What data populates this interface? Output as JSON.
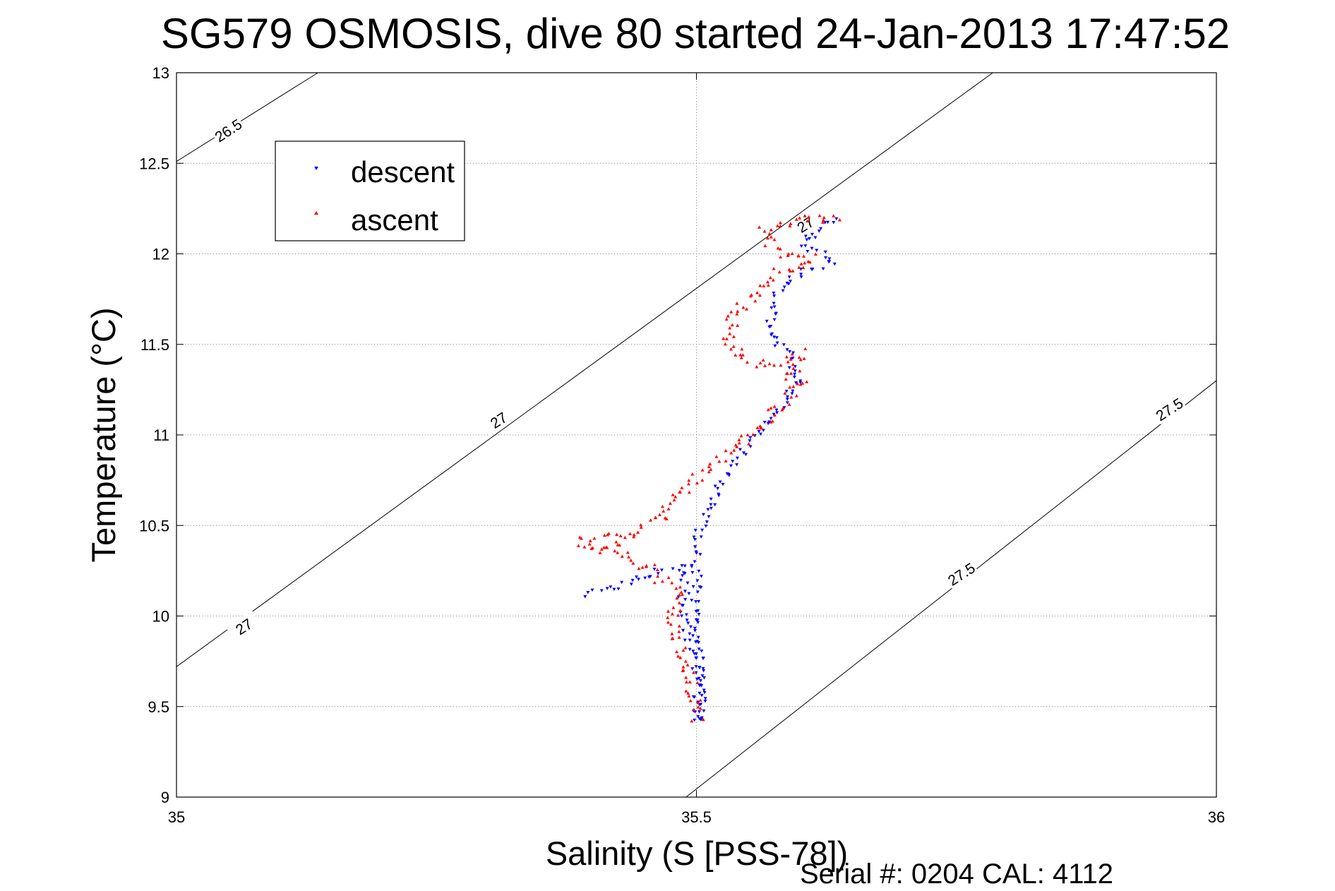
{
  "chart_data": {
    "type": "scatter",
    "title": "SG579 OSMOSIS, dive 80 started 24-Jan-2013 17:47:52",
    "xlabel": "Salinity (S [PSS-78])",
    "ylabel": "Temperature (°C)",
    "xlim": [
      35,
      36
    ],
    "ylim": [
      9,
      13
    ],
    "xticks": [
      35,
      35.5,
      36
    ],
    "xtick_labels": [
      "35",
      "35.5",
      "36"
    ],
    "yticks": [
      9,
      9.5,
      10,
      10.5,
      11,
      11.5,
      12,
      12.5,
      13
    ],
    "ytick_labels": [
      "9",
      "9.5",
      "10",
      "10.5",
      "11",
      "11.5",
      "12",
      "12.5",
      "13"
    ],
    "grid": true,
    "legend_position": "top-left",
    "footer": "Serial #: 0204  CAL: 4112",
    "colors": {
      "descent": "#0000ff",
      "ascent": "#ff0000",
      "contour": "#000000",
      "grid": "#808080"
    },
    "density_contours": [
      {
        "level": "26.5",
        "points": [
          [
            35,
            12.51
          ],
          [
            35.136,
            13
          ]
        ]
      },
      {
        "level": "27",
        "points": [
          [
            35,
            9.72
          ],
          [
            35.785,
            13
          ]
        ]
      },
      {
        "level": "27.5",
        "points": [
          [
            35.49,
            9
          ],
          [
            36,
            11.3
          ]
        ]
      }
    ],
    "contour_labels": [
      {
        "text": "26.5",
        "s": 35.05,
        "t": 12.68,
        "angle": -33
      },
      {
        "text": "27",
        "s": 35.065,
        "t": 9.94,
        "angle": -33
      },
      {
        "text": "27",
        "s": 35.31,
        "t": 11.08,
        "angle": -33
      },
      {
        "text": "27",
        "s": 35.605,
        "t": 12.16,
        "angle": -33
      },
      {
        "text": "27.5",
        "s": 35.755,
        "t": 10.23,
        "angle": -33
      },
      {
        "text": "27.5",
        "s": 35.955,
        "t": 11.14,
        "angle": -33
      }
    ],
    "series": [
      {
        "name": "descent",
        "marker": "triangle-down",
        "path": [
          [
            35.395,
            10.12
          ],
          [
            35.42,
            10.15
          ],
          [
            35.445,
            10.22
          ],
          [
            35.465,
            10.25
          ],
          [
            35.485,
            10.27
          ],
          [
            35.49,
            10.22
          ],
          [
            35.487,
            10.08
          ],
          [
            35.49,
            9.95
          ],
          [
            35.492,
            9.86
          ],
          [
            35.5,
            9.8
          ],
          [
            35.505,
            9.72
          ],
          [
            35.508,
            9.62
          ],
          [
            35.505,
            9.52
          ],
          [
            35.5,
            9.41
          ],
          [
            35.5,
            10.45
          ],
          [
            35.52,
            10.7
          ],
          [
            35.545,
            10.9
          ],
          [
            35.57,
            11.1
          ],
          [
            35.59,
            11.22
          ],
          [
            35.6,
            11.3
          ],
          [
            35.59,
            11.35
          ],
          [
            35.595,
            11.44
          ],
          [
            35.58,
            11.5
          ],
          [
            35.57,
            11.6
          ],
          [
            35.575,
            11.75
          ],
          [
            35.58,
            11.8
          ],
          [
            35.6,
            11.9
          ],
          [
            35.63,
            11.95
          ],
          [
            35.62,
            12
          ],
          [
            35.6,
            12.05
          ],
          [
            35.62,
            12.15
          ],
          [
            35.635,
            12.2
          ]
        ],
        "count": 240,
        "spread": 0.005
      },
      {
        "name": "ascent",
        "marker": "triangle-up",
        "path": [
          [
            35.5,
            9.42
          ],
          [
            35.5,
            9.5
          ],
          [
            35.495,
            9.6
          ],
          [
            35.492,
            9.7
          ],
          [
            35.485,
            9.8
          ],
          [
            35.48,
            9.9
          ],
          [
            35.478,
            9.98
          ],
          [
            35.482,
            10.12
          ],
          [
            35.476,
            10.18
          ],
          [
            35.462,
            10.22
          ],
          [
            35.445,
            10.3
          ],
          [
            35.43,
            10.35
          ],
          [
            35.42,
            10.4
          ],
          [
            35.405,
            10.35
          ],
          [
            35.39,
            10.4
          ],
          [
            35.4,
            10.42
          ],
          [
            35.44,
            10.45
          ],
          [
            35.47,
            10.55
          ],
          [
            35.485,
            10.7
          ],
          [
            35.51,
            10.82
          ],
          [
            35.54,
            10.93
          ],
          [
            35.56,
            11.05
          ],
          [
            35.585,
            11.2
          ],
          [
            35.6,
            11.3
          ],
          [
            35.59,
            11.32
          ],
          [
            35.6,
            11.45
          ],
          [
            35.58,
            11.4
          ],
          [
            35.55,
            11.4
          ],
          [
            35.535,
            11.5
          ],
          [
            35.53,
            11.55
          ],
          [
            35.54,
            11.7
          ],
          [
            35.56,
            11.78
          ],
          [
            35.575,
            11.88
          ],
          [
            35.6,
            11.93
          ],
          [
            35.61,
            11.98
          ],
          [
            35.585,
            12
          ],
          [
            35.57,
            12.08
          ],
          [
            35.565,
            12.12
          ],
          [
            35.58,
            12.15
          ],
          [
            35.6,
            12.18
          ],
          [
            35.625,
            12.2
          ],
          [
            35.635,
            12.22
          ]
        ],
        "count": 260,
        "spread": 0.007
      }
    ]
  }
}
